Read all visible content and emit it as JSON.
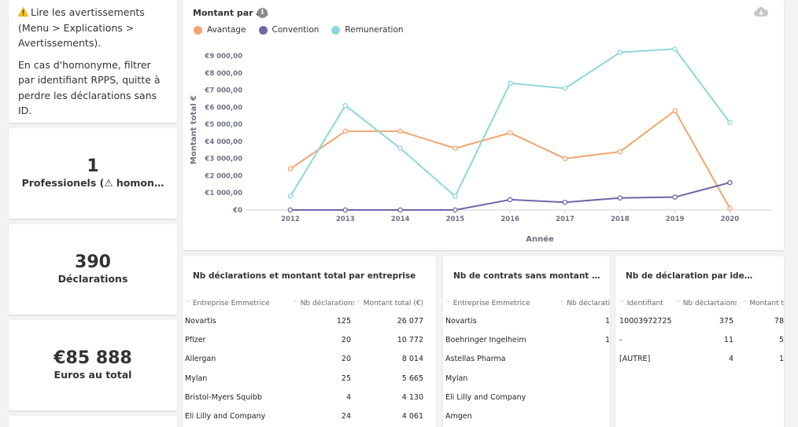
{
  "notice": {
    "line1": "Lire les avertissements (Menu > Explications > Avertissements).",
    "line2": "En cas d'homonyme, filtrer par identifiant RPPS, quitte à perdre les déclarations sans ID."
  },
  "stats": [
    {
      "value": "1",
      "label": "Professionels (⚠ homon…"
    },
    {
      "value": "390",
      "label": "Déclarations"
    },
    {
      "value": "€85 888",
      "label": "Euros au total"
    }
  ],
  "colors": {
    "avantage": "#f2a56f",
    "convention": "#6f66a8",
    "remuneration": "#8ed7d8"
  },
  "chart_data": {
    "type": "line",
    "title": "Montant par an",
    "xlabel": "Année",
    "ylabel": "Montant total €",
    "x": [
      "2012",
      "2013",
      "2014",
      "2015",
      "2016",
      "2017",
      "2018",
      "2019",
      "2020"
    ],
    "ylim": [
      0,
      9000
    ],
    "yticks": [
      "€0",
      "€1 000,00",
      "€2 000,00",
      "€3 000,00",
      "€4 000,00",
      "€5 000,00",
      "€6 000,00",
      "€7 000,00",
      "€8 000,00",
      "€9 000,00"
    ],
    "legend_position": "top-left",
    "series": [
      {
        "name": "Avantage",
        "values": [
          2400,
          4600,
          4600,
          3600,
          4500,
          3000,
          3400,
          5800,
          100
        ]
      },
      {
        "name": "Convention",
        "values": [
          0,
          0,
          0,
          0,
          600,
          450,
          700,
          750,
          1600
        ]
      },
      {
        "name": "Remuneration",
        "values": [
          800,
          6100,
          3600,
          800,
          7400,
          7100,
          9200,
          9400,
          5100
        ]
      }
    ]
  },
  "table1": {
    "title": "Nb déclarations et montant total par entreprise",
    "headers": [
      "Entreprise Emmetrice",
      "Nb déclarations",
      "Montant total (€)"
    ],
    "rows": [
      [
        "Novartis",
        "125",
        "26 077"
      ],
      [
        "Pfizer",
        "20",
        "10 772"
      ],
      [
        "Allergan",
        "20",
        "8 014"
      ],
      [
        "Mylan",
        "25",
        "5 665"
      ],
      [
        "Bristol-Myers Squibb",
        "4",
        "4 130"
      ],
      [
        "Eli Lilly and Company",
        "24",
        "4 061"
      ]
    ]
  },
  "table2": {
    "title": "Nb de contrats sans montant …",
    "headers": [
      "Entreprise Emmetrice",
      "Nb déclarati"
    ],
    "rows": [
      [
        "Novartis",
        "1"
      ],
      [
        "Boehringer Ingelheim",
        "1"
      ],
      [
        "Astellas Pharma",
        ""
      ],
      [
        "Mylan",
        ""
      ],
      [
        "Eli Lilly and Company",
        ""
      ],
      [
        "Amgen",
        ""
      ]
    ]
  },
  "table3": {
    "title": "Nb de déclaration par ide…",
    "headers": [
      "Identifiant",
      "Nb déclartaions",
      "Montant t"
    ],
    "rows": [
      [
        "10003972725",
        "375",
        "78"
      ],
      [
        "-",
        "11",
        "5"
      ],
      [
        "[AUTRE]",
        "4",
        "1"
      ]
    ]
  }
}
